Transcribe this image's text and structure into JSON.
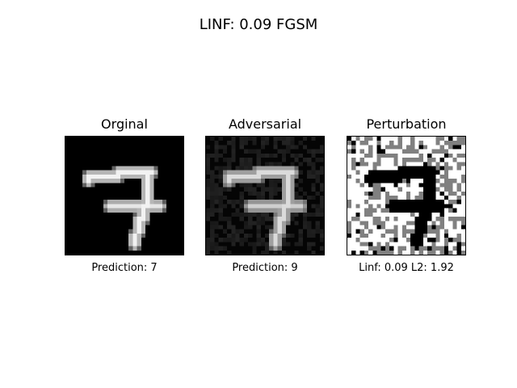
{
  "figure": {
    "title": "LINF: 0.09 FGSM"
  },
  "panels": [
    {
      "title": "Orginal",
      "caption": "Prediction: 7",
      "image": "mnist-digit-7-grayscale"
    },
    {
      "title": "Adversarial",
      "caption": "Prediction: 9",
      "image": "mnist-digit-7-with-noise"
    },
    {
      "title": "Perturbation",
      "caption": "Linf: 0.09  L2: 1.92",
      "image": "sign-perturbation-map"
    }
  ],
  "colors": {
    "background": "#ffffff",
    "image_dark": "#000000",
    "image_light": "#ffffff",
    "perturbation_mid": "#808080"
  }
}
